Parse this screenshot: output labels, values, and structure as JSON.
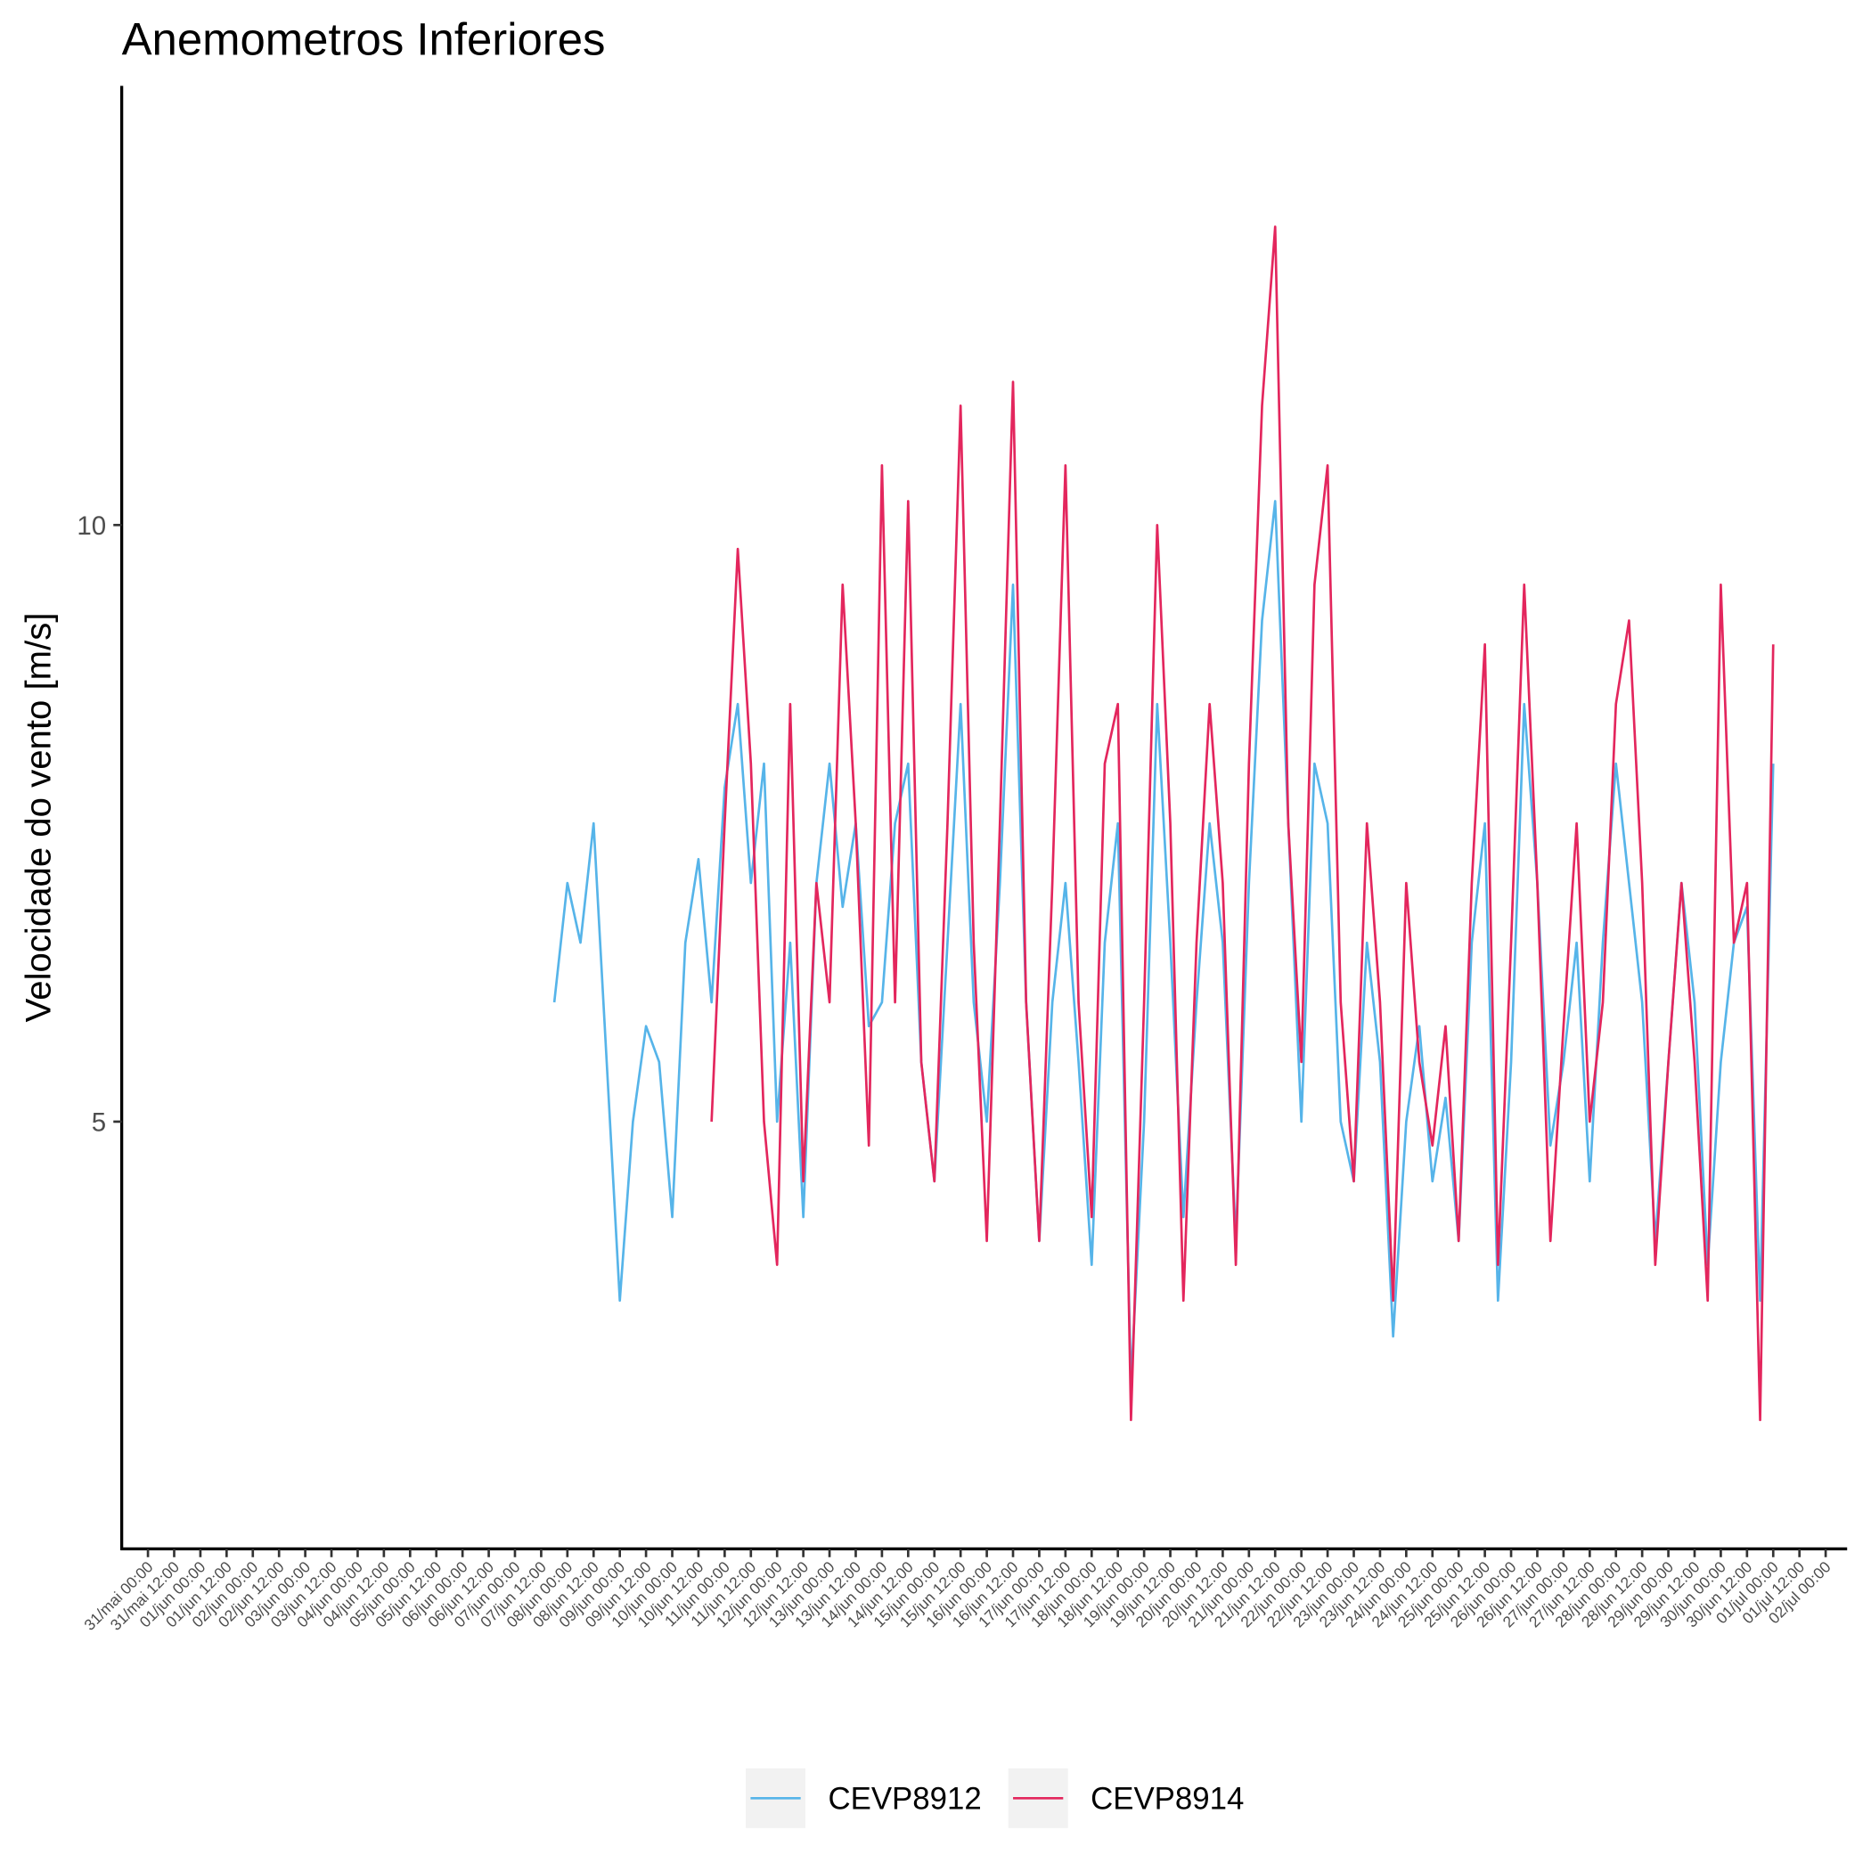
{
  "chart_data": {
    "type": "line",
    "title": "Anemometros Inferiores",
    "y_label": "Velocidade do vento [m/s]",
    "x": [
      "07/jun 18:00",
      "08/jun 00:00",
      "08/jun 06:00",
      "08/jun 12:00",
      "08/jun 18:00",
      "09/jun 00:00",
      "09/jun 06:00",
      "09/jun 12:00",
      "09/jun 18:00",
      "10/jun 00:00",
      "10/jun 06:00",
      "10/jun 12:00",
      "10/jun 18:00",
      "11/jun 00:00",
      "11/jun 06:00",
      "11/jun 12:00",
      "11/jun 18:00",
      "12/jun 00:00",
      "12/jun 06:00",
      "12/jun 12:00",
      "12/jun 18:00",
      "13/jun 00:00",
      "13/jun 06:00",
      "13/jun 12:00",
      "13/jun 18:00",
      "14/jun 00:00",
      "14/jun 06:00",
      "14/jun 12:00",
      "14/jun 18:00",
      "15/jun 00:00",
      "15/jun 06:00",
      "15/jun 12:00",
      "15/jun 18:00",
      "16/jun 00:00",
      "16/jun 06:00",
      "16/jun 12:00",
      "16/jun 18:00",
      "17/jun 00:00",
      "17/jun 06:00",
      "17/jun 12:00",
      "17/jun 18:00",
      "18/jun 00:00",
      "18/jun 06:00",
      "18/jun 12:00",
      "18/jun 18:00",
      "19/jun 00:00",
      "19/jun 06:00",
      "19/jun 12:00",
      "19/jun 18:00",
      "20/jun 00:00",
      "20/jun 06:00",
      "20/jun 12:00",
      "20/jun 18:00",
      "21/jun 00:00",
      "21/jun 06:00",
      "21/jun 12:00",
      "21/jun 18:00",
      "22/jun 00:00",
      "22/jun 06:00",
      "22/jun 12:00",
      "22/jun 18:00",
      "23/jun 00:00",
      "23/jun 06:00",
      "23/jun 12:00",
      "23/jun 18:00",
      "24/jun 00:00",
      "24/jun 06:00",
      "24/jun 12:00",
      "24/jun 18:00",
      "25/jun 00:00",
      "25/jun 06:00",
      "25/jun 12:00",
      "25/jun 18:00",
      "26/jun 00:00",
      "26/jun 06:00",
      "26/jun 12:00",
      "26/jun 18:00",
      "27/jun 00:00",
      "27/jun 06:00",
      "27/jun 12:00",
      "27/jun 18:00",
      "28/jun 00:00",
      "28/jun 06:00",
      "28/jun 12:00",
      "28/jun 18:00",
      "29/jun 00:00",
      "29/jun 06:00",
      "29/jun 12:00",
      "29/jun 18:00",
      "30/jun 00:00",
      "30/jun 06:00",
      "30/jun 12:00",
      "30/jun 18:00",
      "01/jul 00:00"
    ],
    "series": [
      {
        "name": "CEVP8912",
        "color": "#56b4e9",
        "values": [
          6,
          7,
          6.5,
          7.5,
          5.5,
          3.5,
          5,
          5.8,
          5.5,
          4.2,
          6.5,
          7.2,
          6,
          7.8,
          8.5,
          7,
          8,
          5,
          6.5,
          4.2,
          7,
          8,
          6.8,
          7.5,
          5.8,
          6,
          7.5,
          8,
          5.5,
          4.5,
          6.5,
          8.5,
          6,
          5,
          7,
          9.5,
          6,
          4,
          6,
          7,
          5.5,
          3.8,
          6.5,
          7.5,
          2.8,
          5,
          8.5,
          6.5,
          4.2,
          6,
          7.5,
          6.5,
          4,
          7,
          9.2,
          10.2,
          7.5,
          5,
          8,
          7.5,
          5,
          4.5,
          6.5,
          5.5,
          3.2,
          5,
          5.8,
          4.5,
          5.2,
          4,
          6.5,
          7.5,
          3.5,
          5.5,
          8.5,
          7,
          4.8,
          5.5,
          6.5,
          4.5,
          6.5,
          8,
          7,
          6,
          4,
          5.5,
          7,
          6,
          3.8,
          5.5,
          6.5,
          6.8,
          3.5,
          8
        ]
      },
      {
        "name": "CEVP8914",
        "color": "#e3265d",
        "values": [
          null,
          null,
          null,
          null,
          null,
          null,
          null,
          null,
          null,
          null,
          null,
          null,
          5,
          7.5,
          9.8,
          8,
          5,
          3.8,
          8.5,
          4.5,
          7,
          6,
          9.5,
          7.5,
          4.8,
          10.5,
          6,
          10.2,
          5.5,
          4.5,
          7.5,
          11,
          6.5,
          4,
          7.5,
          11.2,
          6,
          4,
          7,
          10.5,
          6,
          4.2,
          8,
          8.5,
          2.5,
          6,
          10,
          7.5,
          3.5,
          6.5,
          8.5,
          7,
          3.8,
          8,
          11,
          12.5,
          7.5,
          5.5,
          9.5,
          10.5,
          6,
          4.5,
          7.5,
          6,
          3.5,
          7,
          5.5,
          4.8,
          5.8,
          4,
          7,
          9,
          3.8,
          6.5,
          9.5,
          7,
          4,
          5.8,
          7.5,
          5,
          6,
          8.5,
          9.2,
          7,
          3.8,
          5.5,
          7,
          5.5,
          3.5,
          9.5,
          6.5,
          7,
          2.5,
          9
        ]
      }
    ],
    "ylim": [
      1.42,
      13.68
    ],
    "yticks": [
      5,
      10
    ],
    "xticks": [
      "31/mai 00:00",
      "31/mai 12:00",
      "01/jun 00:00",
      "01/jun 12:00",
      "02/jun 00:00",
      "02/jun 12:00",
      "03/jun 00:00",
      "03/jun 12:00",
      "04/jun 00:00",
      "04/jun 12:00",
      "05/jun 00:00",
      "05/jun 12:00",
      "06/jun 00:00",
      "06/jun 12:00",
      "07/jun 00:00",
      "07/jun 12:00",
      "08/jun 00:00",
      "08/jun 12:00",
      "09/jun 00:00",
      "09/jun 12:00",
      "10/jun 00:00",
      "10/jun 12:00",
      "11/jun 00:00",
      "11/jun 12:00",
      "12/jun 00:00",
      "12/jun 12:00",
      "13/jun 00:00",
      "13/jun 12:00",
      "14/jun 00:00",
      "14/jun 12:00",
      "15/jun 00:00",
      "15/jun 12:00",
      "16/jun 00:00",
      "16/jun 12:00",
      "17/jun 00:00",
      "17/jun 12:00",
      "18/jun 00:00",
      "18/jun 12:00",
      "19/jun 00:00",
      "19/jun 12:00",
      "20/jun 00:00",
      "20/jun 12:00",
      "21/jun 00:00",
      "21/jun 12:00",
      "22/jun 00:00",
      "22/jun 12:00",
      "23/jun 00:00",
      "23/jun 12:00",
      "24/jun 00:00",
      "24/jun 12:00",
      "25/jun 00:00",
      "25/jun 12:00",
      "26/jun 00:00",
      "26/jun 12:00",
      "27/jun 00:00",
      "27/jun 12:00",
      "28/jun 00:00",
      "28/jun 12:00",
      "29/jun 00:00",
      "29/jun 12:00",
      "30/jun 00:00",
      "30/jun 12:00",
      "01/jul 00:00",
      "01/jul 12:00",
      "02/jul 00:00"
    ],
    "grid": false,
    "legend": "bottom"
  }
}
